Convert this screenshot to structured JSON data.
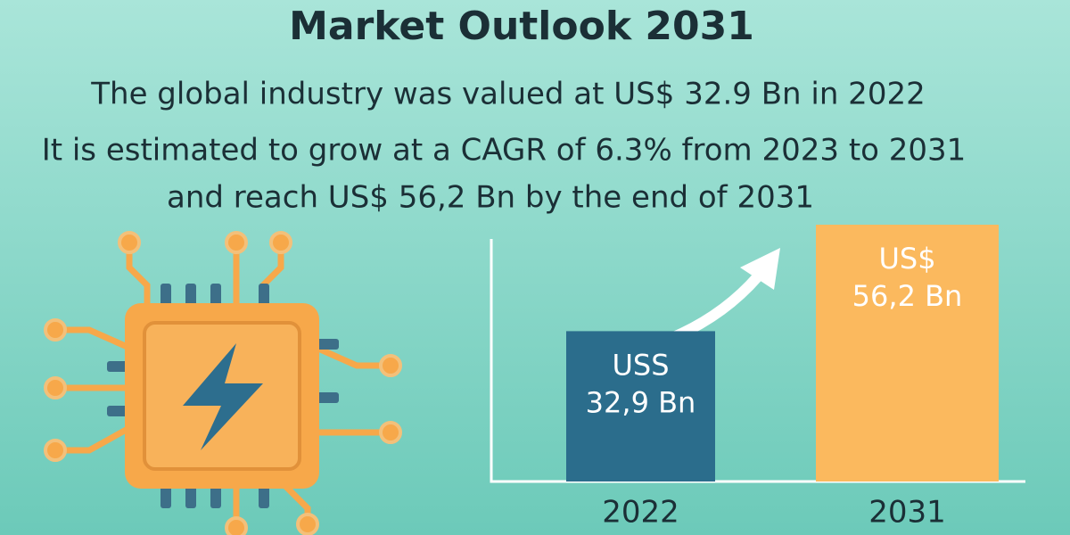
{
  "chart_data": {
    "type": "bar",
    "title": "Market Outlook 2031",
    "subtitle": [
      "The global industry was valued at US$ 32.9 Bn in 2022",
      "It is estimated to grow at a CAGR of 6.3% from 2023 to 2031",
      "and reach US$ 56,2 Bn by the end of 2031"
    ],
    "categories": [
      "2022",
      "2031"
    ],
    "values": [
      32.9,
      56.2
    ],
    "value_labels": [
      "USS\n32,9 Bn",
      "US$\n56,2 Bn"
    ],
    "colors": [
      "#2b6d8c",
      "#fbb95e"
    ],
    "ylim": [
      0,
      56.2
    ]
  }
}
